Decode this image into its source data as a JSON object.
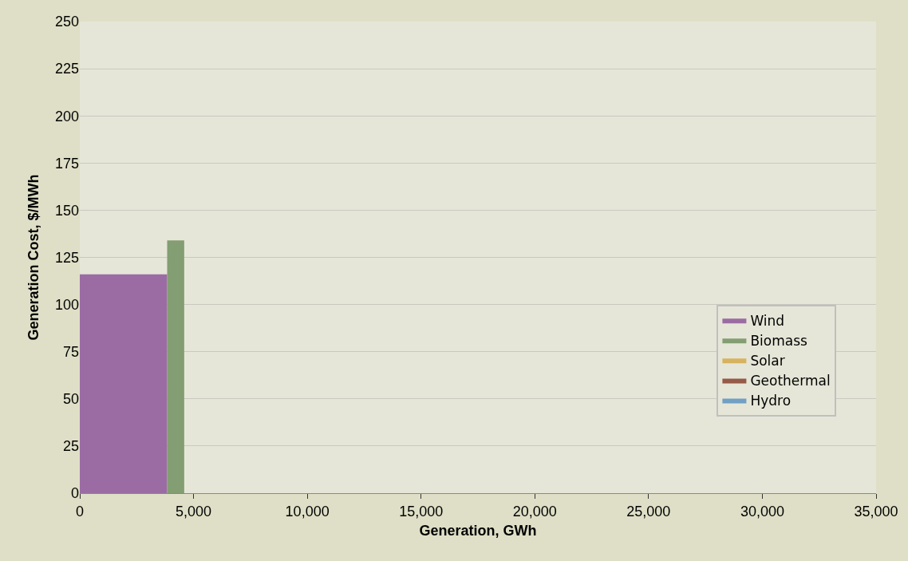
{
  "chart_data": {
    "type": "area",
    "xlabel": "Generation, GWh",
    "ylabel": "Generation Cost, $/MWh",
    "series": [
      {
        "name": "Wind",
        "color": "#9b6ca3",
        "x": [
          0,
          3840
        ],
        "values": [
          116,
          116
        ]
      },
      {
        "name": "Biomass",
        "color": "#839e72",
        "x": [
          3840,
          4590
        ],
        "values": [
          134,
          134
        ]
      },
      {
        "name": "Solar",
        "color": "#d7b35e"
      },
      {
        "name": "Geothermal",
        "color": "#955a48"
      },
      {
        "name": "Hydro",
        "color": "#71a0c4"
      }
    ],
    "xlim": [
      0,
      35000
    ],
    "xticks": [
      0,
      {
        "value": 5000,
        "label": "5,000"
      },
      {
        "value": 10000,
        "label": "10,000"
      },
      {
        "value": 15000,
        "label": "15,000"
      },
      {
        "value": 20000,
        "label": "20,000"
      },
      {
        "value": 25000,
        "label": "25,000"
      },
      {
        "value": 30000,
        "label": "30,000"
      },
      {
        "value": 35000,
        "label": "35,000"
      }
    ],
    "ylim": [
      0,
      250
    ],
    "yticks": [
      0,
      25,
      50,
      75,
      100,
      125,
      150,
      175,
      200,
      225,
      250
    ],
    "grid": "y",
    "legend": "right"
  }
}
